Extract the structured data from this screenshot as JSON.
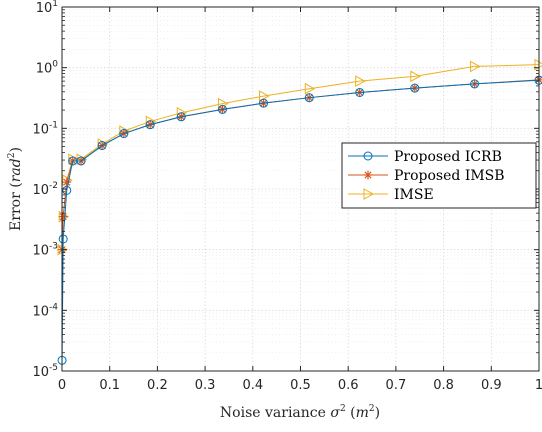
{
  "chart_data": {
    "type": "line",
    "title": "",
    "xlabel_parts": {
      "pre": "Noise variance ",
      "sym": "σ",
      "symsup": "2",
      "open": " (",
      "unit": "m",
      "unitsup": "2",
      "close": ")"
    },
    "ylabel_parts": {
      "pre": "Error ",
      "open": "(",
      "unit": "rad",
      "unitsup": "2",
      "close": ")"
    },
    "xlim": [
      0,
      1
    ],
    "ylim_exponents": [
      -5,
      1
    ],
    "y_scale": "log",
    "grid": true,
    "legend_position": "right",
    "x_ticks": [
      "0",
      "0.1",
      "0.2",
      "0.3",
      "0.4",
      "0.5",
      "0.6",
      "0.7",
      "0.8",
      "0.9",
      "1"
    ],
    "y_tick_base": "10",
    "y_tick_exponents": [
      "-5",
      "-4",
      "-3",
      "-2",
      "-1",
      "0",
      "1"
    ],
    "series": [
      {
        "name": "Proposed ICRB",
        "color": "#0072bd",
        "marker": "circle",
        "x": [
          0.0001,
          0.0025,
          0.01,
          0.0225,
          0.04,
          0.0841,
          0.1296,
          0.1849,
          0.25,
          0.3364,
          0.4225,
          0.5184,
          0.6241,
          0.7396,
          0.8649,
          1.0
        ],
        "y": [
          1.5e-05,
          0.0015,
          0.0095,
          0.029,
          0.029,
          0.052,
          0.082,
          0.115,
          0.155,
          0.205,
          0.26,
          0.32,
          0.39,
          0.46,
          0.54,
          0.62
        ]
      },
      {
        "name": "Proposed IMSB",
        "color": "#d95319",
        "marker": "asterisk",
        "x": [
          0.0001,
          0.0025,
          0.01,
          0.0225,
          0.04,
          0.0841,
          0.1296,
          0.1849,
          0.25,
          0.3364,
          0.4225,
          0.5184,
          0.6241,
          0.7396,
          0.8649,
          1.0
        ],
        "y": [
          0.001,
          0.0035,
          0.013,
          0.029,
          0.029,
          0.052,
          0.082,
          0.115,
          0.155,
          0.205,
          0.26,
          0.32,
          0.39,
          0.46,
          0.54,
          0.63
        ]
      },
      {
        "name": "IMSE",
        "color": "#edb120",
        "marker": "triangle-right",
        "x": [
          0.0001,
          0.0025,
          0.01,
          0.0225,
          0.04,
          0.0841,
          0.1296,
          0.1849,
          0.25,
          0.3364,
          0.4225,
          0.5184,
          0.6241,
          0.7396,
          0.8649,
          1.0
        ],
        "y": [
          0.001,
          0.0035,
          0.014,
          0.031,
          0.031,
          0.055,
          0.09,
          0.13,
          0.18,
          0.255,
          0.34,
          0.45,
          0.6,
          0.72,
          1.05,
          1.12
        ]
      }
    ]
  }
}
